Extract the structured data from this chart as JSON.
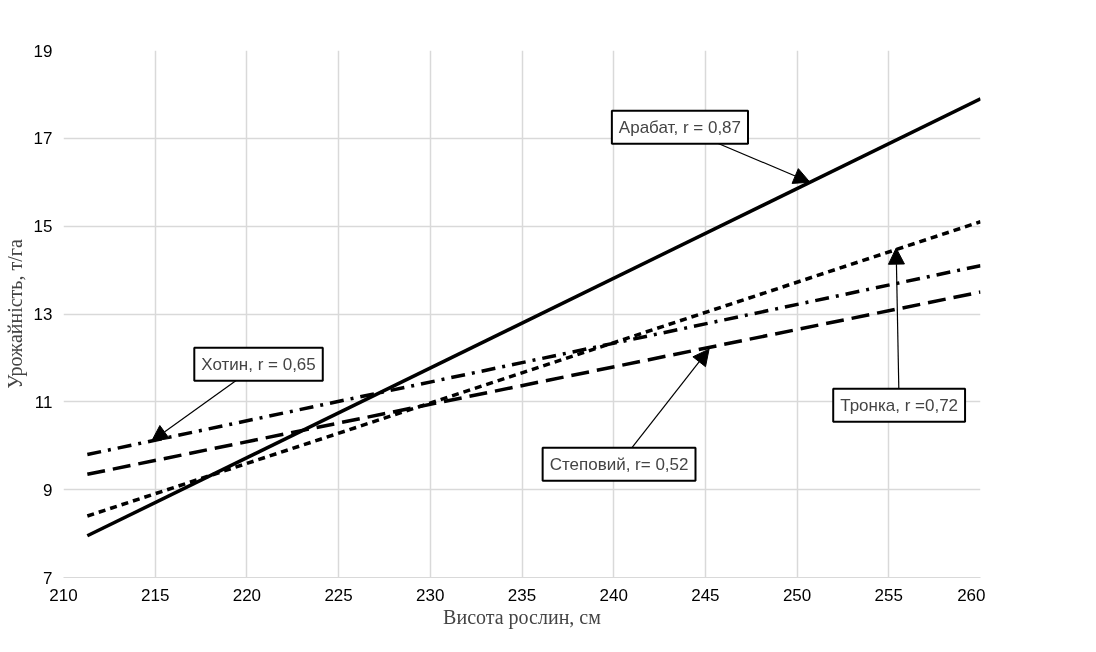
{
  "chart_data": {
    "type": "line",
    "xlabel": "Висота рослин, см",
    "ylabel": "Урожайність, т/га",
    "xlim": [
      210,
      260
    ],
    "xticks": [
      210,
      215,
      220,
      225,
      230,
      235,
      240,
      245,
      250,
      255,
      260
    ],
    "ylim": [
      7,
      19
    ],
    "yticks": [
      7,
      9,
      11,
      13,
      15,
      17,
      19
    ],
    "grid": true,
    "marker": "none",
    "x": [
      211.3,
      260
    ],
    "series": [
      {
        "color": "#000000",
        "line_style": "solid",
        "values": [
          7.95,
          17.9
        ]
      },
      {
        "color": "#000000",
        "line_style": "dotted",
        "values": [
          8.4,
          15.1
        ]
      },
      {
        "color": "#000000",
        "line_style": "dashdot",
        "values": [
          9.8,
          14.1
        ]
      },
      {
        "color": "#000000",
        "line_style": "dashed",
        "values": [
          9.35,
          13.5
        ]
      }
    ],
    "annotations": [
      {
        "text": "Арабат, r = 0,87",
        "x": 250.7,
        "y": 16.0
      },
      {
        "text": "Хотин, r = 0,65",
        "x": 214.8,
        "y": 10.1
      },
      {
        "text": "Степовий, r= 0,52",
        "x": 245.2,
        "y": 12.2
      },
      {
        "text": "Тронка, r =0,72",
        "x": 255.4,
        "y": 14.5
      }
    ]
  }
}
